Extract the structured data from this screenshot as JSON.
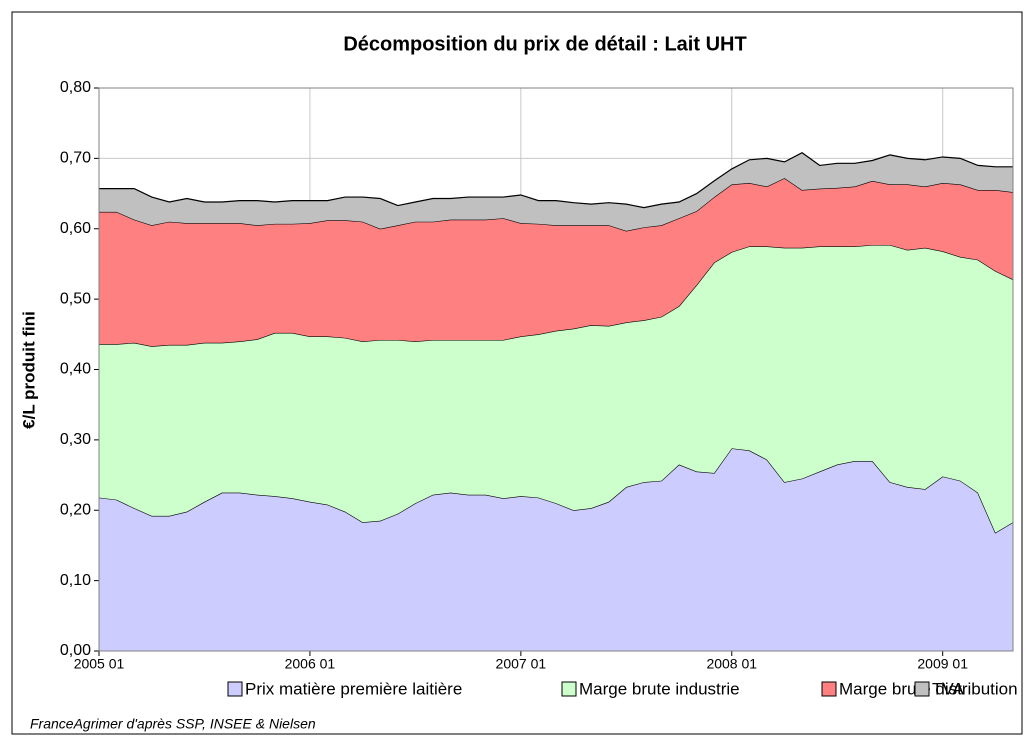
{
  "chart_data": {
    "type": "stacked_area",
    "title": "Décomposition du prix de détail : Lait UHT",
    "y_label": "€/L produit fini",
    "source": "FranceAgrimer d'après SSP, INSEE & Nielsen",
    "categories": [
      "2005 01",
      null,
      null,
      null,
      null,
      null,
      null,
      null,
      null,
      null,
      null,
      null,
      "2006 01",
      null,
      null,
      null,
      null,
      null,
      null,
      null,
      null,
      null,
      null,
      null,
      "2007 01",
      null,
      null,
      null,
      null,
      null,
      null,
      null,
      null,
      null,
      null,
      null,
      "2008 01",
      null,
      null,
      null,
      null,
      null,
      null,
      null,
      null,
      null,
      null,
      null,
      "2009 01",
      null,
      null,
      null,
      null
    ],
    "series": [
      {
        "name": "Prix matière première laitière",
        "color": "#ccccff",
        "values": [
          0.218,
          0.215,
          0.203,
          0.192,
          0.192,
          0.198,
          0.212,
          0.225,
          0.225,
          0.222,
          0.22,
          0.217,
          0.212,
          0.208,
          0.198,
          0.183,
          0.185,
          0.195,
          0.21,
          0.222,
          0.225,
          0.222,
          0.222,
          0.217,
          0.22,
          0.218,
          0.21,
          0.2,
          0.203,
          0.212,
          0.233,
          0.24,
          0.242,
          0.265,
          0.255,
          0.253,
          0.288,
          0.285,
          0.272,
          0.24,
          0.245,
          0.255,
          0.265,
          0.27,
          0.27,
          0.24,
          0.233,
          0.23,
          0.248,
          0.242,
          0.225,
          0.168,
          0.183
        ]
      },
      {
        "name": "Marge brute industrie",
        "color": "#ccffcc",
        "values": [
          0.218,
          0.221,
          0.235,
          0.241,
          0.243,
          0.237,
          0.226,
          0.213,
          0.215,
          0.221,
          0.232,
          0.235,
          0.235,
          0.239,
          0.247,
          0.257,
          0.257,
          0.247,
          0.23,
          0.22,
          0.217,
          0.22,
          0.22,
          0.225,
          0.227,
          0.232,
          0.245,
          0.258,
          0.26,
          0.25,
          0.234,
          0.23,
          0.233,
          0.225,
          0.265,
          0.299,
          0.279,
          0.29,
          0.303,
          0.333,
          0.328,
          0.32,
          0.31,
          0.305,
          0.307,
          0.337,
          0.337,
          0.343,
          0.32,
          0.318,
          0.331,
          0.372,
          0.345
        ]
      },
      {
        "name": "Marge brute distribution",
        "color": "#ff8080",
        "values": [
          0.188,
          0.188,
          0.175,
          0.172,
          0.175,
          0.173,
          0.17,
          0.17,
          0.168,
          0.162,
          0.155,
          0.155,
          0.161,
          0.165,
          0.167,
          0.17,
          0.158,
          0.163,
          0.17,
          0.168,
          0.171,
          0.171,
          0.171,
          0.173,
          0.161,
          0.157,
          0.15,
          0.147,
          0.142,
          0.143,
          0.13,
          0.132,
          0.13,
          0.125,
          0.105,
          0.093,
          0.096,
          0.09,
          0.085,
          0.099,
          0.082,
          0.082,
          0.083,
          0.085,
          0.091,
          0.086,
          0.093,
          0.087,
          0.097,
          0.103,
          0.099,
          0.115,
          0.124
        ]
      },
      {
        "name": "TVA",
        "color": "#c0c0c0",
        "values": [
          0.033,
          0.033,
          0.044,
          0.04,
          0.028,
          0.035,
          0.03,
          0.03,
          0.032,
          0.035,
          0.031,
          0.033,
          0.032,
          0.028,
          0.033,
          0.035,
          0.043,
          0.028,
          0.028,
          0.033,
          0.03,
          0.032,
          0.032,
          0.03,
          0.04,
          0.033,
          0.035,
          0.032,
          0.03,
          0.032,
          0.038,
          0.028,
          0.03,
          0.023,
          0.025,
          0.023,
          0.022,
          0.033,
          0.04,
          0.023,
          0.053,
          0.033,
          0.035,
          0.033,
          0.029,
          0.042,
          0.037,
          0.038,
          0.037,
          0.037,
          0.035,
          0.033,
          0.036
        ]
      }
    ],
    "ylim": [
      0,
      0.8
    ],
    "yticks": [
      {
        "value": 0,
        "label": "0,00"
      },
      {
        "value": 0.1,
        "label": "0,10"
      },
      {
        "value": 0.2,
        "label": "0,20"
      },
      {
        "value": 0.3,
        "label": "0,30"
      },
      {
        "value": 0.4,
        "label": "0,40"
      },
      {
        "value": 0.5,
        "label": "0,50"
      },
      {
        "value": 0.6,
        "label": "0,60"
      },
      {
        "value": 0.7,
        "label": "0,70"
      },
      {
        "value": 0.8,
        "label": "0,80"
      }
    ],
    "grid": true
  }
}
